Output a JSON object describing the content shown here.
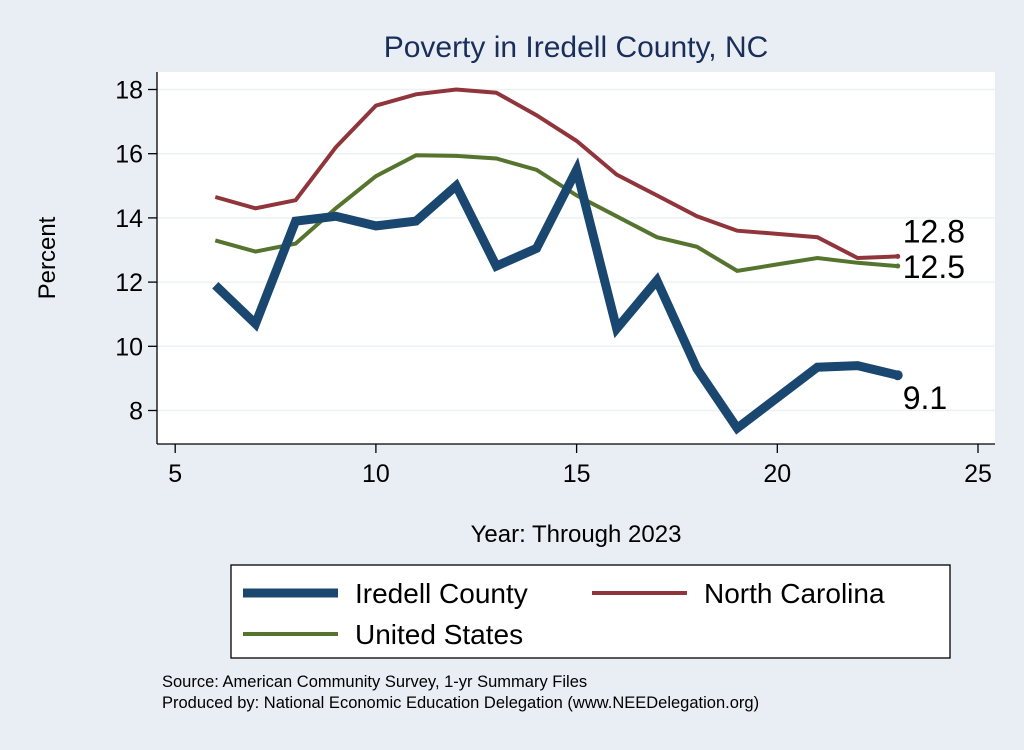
{
  "chart_data": {
    "type": "line",
    "title": "Poverty in Iredell County, NC",
    "xlabel": "Year: Through 2023",
    "ylabel": "Percent",
    "xlim": [
      5,
      25
    ],
    "ylim": [
      7,
      18.5
    ],
    "xticks": [
      5,
      10,
      15,
      20,
      25
    ],
    "yticks": [
      8,
      10,
      12,
      14,
      16,
      18
    ],
    "grid": true,
    "legend_position": "bottom",
    "series": [
      {
        "name": "Iredell County",
        "color": "#1a476f",
        "x": [
          6,
          7,
          8,
          9,
          10,
          11,
          12,
          13,
          14,
          15,
          16,
          17,
          18,
          19,
          20,
          21,
          22,
          23
        ],
        "values": [
          11.9,
          10.7,
          13.9,
          14.05,
          13.75,
          13.9,
          15.0,
          12.5,
          13.05,
          15.5,
          10.55,
          12.05,
          9.3,
          7.45,
          8.4,
          9.35,
          9.4,
          9.1
        ]
      },
      {
        "name": "North Carolina",
        "color": "#90353b",
        "x": [
          6,
          7,
          8,
          9,
          10,
          11,
          12,
          13,
          14,
          15,
          16,
          17,
          18,
          19,
          20,
          21,
          22,
          23
        ],
        "values": [
          14.65,
          14.3,
          14.55,
          16.2,
          17.5,
          17.85,
          18.0,
          17.9,
          17.2,
          16.4,
          15.35,
          14.7,
          14.05,
          13.6,
          13.5,
          13.4,
          12.75,
          12.8
        ]
      },
      {
        "name": "United States",
        "color": "#55752f",
        "x": [
          6,
          7,
          8,
          9,
          10,
          11,
          12,
          13,
          14,
          15,
          16,
          17,
          18,
          19,
          20,
          21,
          22,
          23
        ],
        "values": [
          13.3,
          12.95,
          13.2,
          14.3,
          15.3,
          15.95,
          15.93,
          15.85,
          15.5,
          14.7,
          14.05,
          13.4,
          13.1,
          12.35,
          12.55,
          12.75,
          12.6,
          12.5
        ]
      }
    ],
    "end_labels": [
      {
        "series": "North Carolina",
        "text": "12.8"
      },
      {
        "series": "United States",
        "text": "12.5"
      },
      {
        "series": "Iredell County",
        "text": "9.1"
      }
    ],
    "notes": [
      "Source: American Community Survey, 1-yr Summary Files",
      "Produced by: National Economic Education Delegation (www.NEEDelegation.org)"
    ]
  },
  "colors": {
    "background": "#e9eef5",
    "plot_background": "#ffffff",
    "grid": "#eaf2f3",
    "axis": "#000000",
    "title": "#1a2e5a"
  }
}
